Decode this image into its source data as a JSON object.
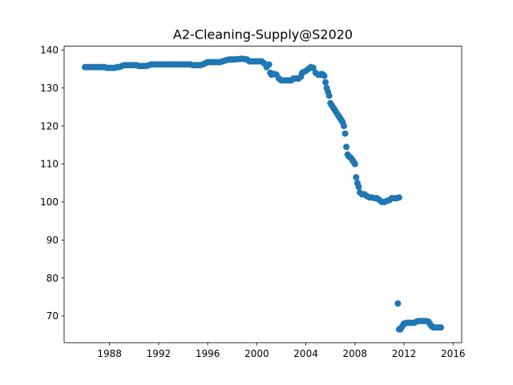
{
  "chart_data": {
    "type": "scatter",
    "title": "A2-Cleaning-Supply@S2020",
    "xlabel": "",
    "ylabel": "",
    "xlim": [
      1984.3,
      2016.7
    ],
    "ylim": [
      63,
      141
    ],
    "x_ticks": [
      1988,
      1992,
      1996,
      2000,
      2004,
      2008,
      2012,
      2016
    ],
    "y_ticks": [
      70,
      80,
      90,
      100,
      110,
      120,
      130,
      140
    ],
    "grid": false,
    "marker_color": "#1f77b4",
    "series": [
      {
        "x": [
          1986.0,
          1986.2,
          1986.4,
          1986.6,
          1986.8,
          1987.0,
          1987.2,
          1987.4,
          1987.6,
          1987.8,
          1988.0,
          1988.2,
          1988.4,
          1988.6,
          1988.8,
          1989.0,
          1989.2,
          1989.4,
          1989.6,
          1989.8,
          1990.0,
          1990.2,
          1990.4,
          1990.6,
          1990.8,
          1991.0,
          1991.2,
          1991.4,
          1991.6,
          1991.8,
          1992.0,
          1992.2,
          1992.4,
          1992.6,
          1992.8,
          1993.0,
          1993.2,
          1993.4,
          1993.6,
          1993.8,
          1994.0,
          1994.2,
          1994.4,
          1994.6,
          1994.8,
          1995.0,
          1995.2,
          1995.4,
          1995.6,
          1995.8,
          1996.0,
          1996.2,
          1996.4,
          1996.6,
          1996.8,
          1997.0,
          1997.2,
          1997.4,
          1997.6,
          1997.8,
          1998.0,
          1998.2,
          1998.4,
          1998.6,
          1998.8,
          1999.0,
          1999.2,
          1999.4,
          1999.6,
          1999.8,
          2000.0,
          2000.2,
          2000.4,
          2000.6,
          2000.8,
          2001.0,
          2001.1,
          2001.2,
          2001.3,
          2001.4,
          2001.6,
          2001.8,
          2002.0,
          2002.2,
          2002.4,
          2002.6,
          2002.8,
          2003.0,
          2003.2,
          2003.4,
          2003.6,
          2003.7,
          2003.8,
          2004.0,
          2004.2,
          2004.4,
          2004.6,
          2004.8,
          2005.0,
          2005.2,
          2005.3,
          2005.4,
          2005.5,
          2005.6,
          2005.7,
          2005.8,
          2005.9,
          2006.0,
          2006.1,
          2006.2,
          2006.3,
          2006.4,
          2006.5,
          2006.6,
          2006.7,
          2006.8,
          2006.9,
          2007.0,
          2007.1,
          2007.2,
          2007.3,
          2007.4,
          2007.5,
          2007.6,
          2007.7,
          2007.8,
          2007.9,
          2008.0,
          2008.1,
          2008.2,
          2008.3,
          2008.4,
          2008.6,
          2008.8,
          2009.0,
          2009.2,
          2009.4,
          2009.6,
          2009.8,
          2010.0,
          2010.2,
          2010.4,
          2010.6,
          2010.8,
          2011.0,
          2011.2,
          2011.4,
          2011.6,
          2011.4,
          2011.5,
          2011.6,
          2011.7,
          2011.8,
          2011.9,
          2012.0,
          2012.2,
          2012.4,
          2012.6,
          2012.8,
          2013.0,
          2013.2,
          2013.4,
          2013.6,
          2013.8,
          2014.0,
          2014.1,
          2014.2,
          2014.3,
          2014.4,
          2014.6,
          2014.8,
          2015.0
        ],
        "y": [
          135.5,
          135.5,
          135.5,
          135.5,
          135.5,
          135.5,
          135.5,
          135.5,
          135.5,
          135.3,
          135.3,
          135.3,
          135.3,
          135.5,
          135.5,
          135.8,
          136.0,
          136.0,
          136.0,
          136.0,
          136.0,
          136.0,
          135.8,
          135.8,
          135.8,
          135.8,
          136.0,
          136.2,
          136.2,
          136.2,
          136.2,
          136.2,
          136.2,
          136.2,
          136.2,
          136.2,
          136.2,
          136.2,
          136.2,
          136.2,
          136.2,
          136.2,
          136.2,
          136.2,
          136.0,
          136.0,
          136.0,
          136.0,
          136.2,
          136.5,
          136.8,
          136.8,
          136.8,
          136.8,
          136.8,
          136.8,
          137.0,
          137.2,
          137.4,
          137.5,
          137.5,
          137.5,
          137.6,
          137.6,
          137.7,
          137.6,
          137.5,
          137.0,
          137.0,
          137.0,
          137.0,
          137.0,
          137.0,
          136.5,
          135.5,
          136.2,
          134.0,
          133.5,
          133.7,
          133.7,
          133.5,
          132.5,
          132.0,
          132.0,
          132.0,
          132.0,
          132.0,
          132.5,
          132.5,
          132.5,
          133.0,
          134.0,
          134.2,
          134.5,
          135.0,
          135.5,
          135.3,
          134.0,
          133.5,
          133.5,
          133.7,
          133.5,
          133.2,
          131.5,
          130.0,
          129.0,
          128.0,
          126.0,
          125.5,
          125.0,
          124.5,
          124.0,
          123.5,
          123.0,
          122.5,
          122.0,
          121.5,
          121.0,
          120.0,
          118.0,
          114.5,
          112.5,
          112.0,
          111.8,
          111.5,
          111.0,
          110.5,
          110.0,
          106.5,
          105.0,
          104.0,
          102.5,
          102.0,
          102.0,
          101.5,
          101.2,
          101.2,
          101.0,
          101.0,
          100.5,
          100.0,
          100.0,
          100.3,
          100.5,
          101.0,
          101.0,
          101.0,
          101.2,
          101.0,
          73.3,
          66.5,
          66.5,
          67.0,
          67.5,
          68.0,
          68.2,
          68.2,
          68.2,
          68.2,
          68.5,
          68.7,
          68.7,
          68.7,
          68.7,
          68.5,
          68.0,
          67.5,
          67.2,
          67.0,
          67.0,
          67.0,
          67.0
        ]
      }
    ]
  }
}
